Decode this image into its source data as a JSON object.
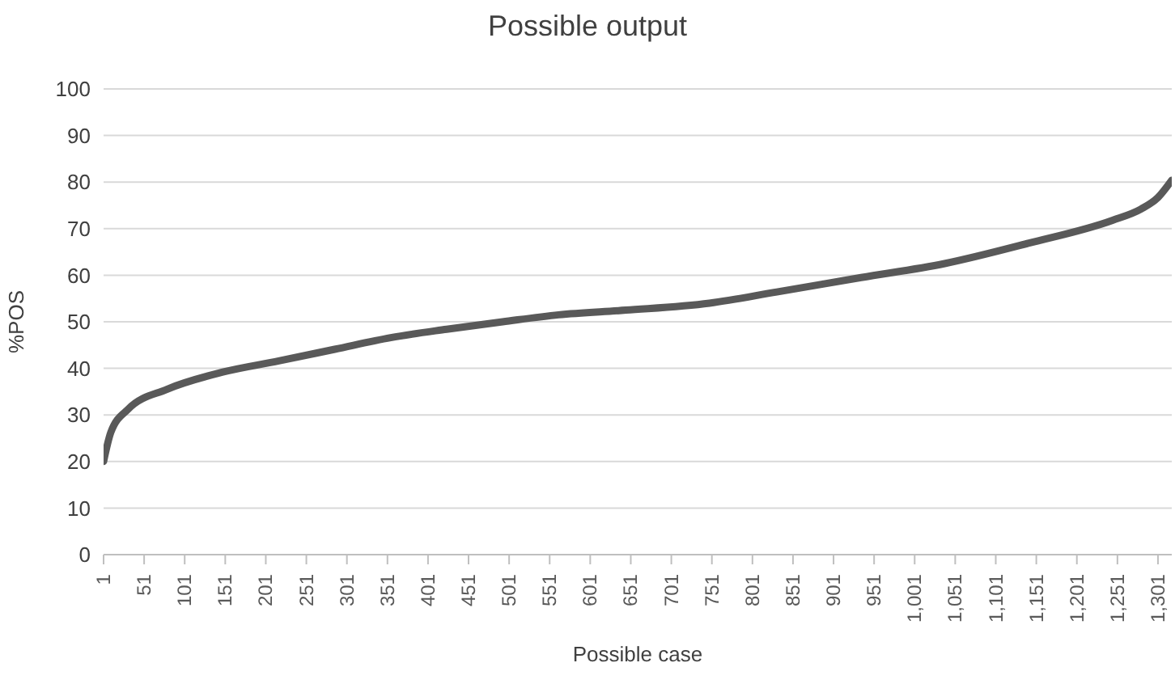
{
  "chart_data": {
    "type": "line",
    "title": "Possible output",
    "xlabel": "Possible case",
    "ylabel": "%POS",
    "x": [
      1,
      10,
      31,
      79,
      148,
      217,
      286,
      355,
      424,
      493,
      562,
      645,
      748,
      831,
      935,
      1038,
      1142,
      1245,
      1280,
      1301,
      1318
    ],
    "series": [
      {
        "color": "#595959",
        "values": [
          20,
          26.3,
          31.2,
          35.5,
          39.2,
          41.6,
          44.1,
          46.6,
          48.4,
          50,
          51.5,
          52.5,
          54,
          56.4,
          59.5,
          62.5,
          66.9,
          71.8,
          74.2,
          76.7,
          80.4
        ]
      }
    ],
    "xlim": [
      1,
      1318
    ],
    "xticks": [
      1,
      51,
      101,
      151,
      201,
      251,
      301,
      351,
      401,
      451,
      501,
      551,
      601,
      651,
      701,
      751,
      801,
      851,
      901,
      951,
      {
        "value": 1001,
        "label": "1,001"
      },
      {
        "value": 1051,
        "label": "1,051"
      },
      {
        "value": 1101,
        "label": "1,101"
      },
      {
        "value": 1151,
        "label": "1,151"
      },
      {
        "value": 1201,
        "label": "1,201"
      },
      {
        "value": 1251,
        "label": "1,251"
      },
      {
        "value": 1301,
        "label": "1,301"
      }
    ],
    "ylim": [
      0,
      100
    ],
    "yticks": [
      0,
      10,
      20,
      30,
      40,
      50,
      60,
      70,
      80,
      90,
      100
    ],
    "grid": "y",
    "marker": "none",
    "line_style": "solid"
  }
}
